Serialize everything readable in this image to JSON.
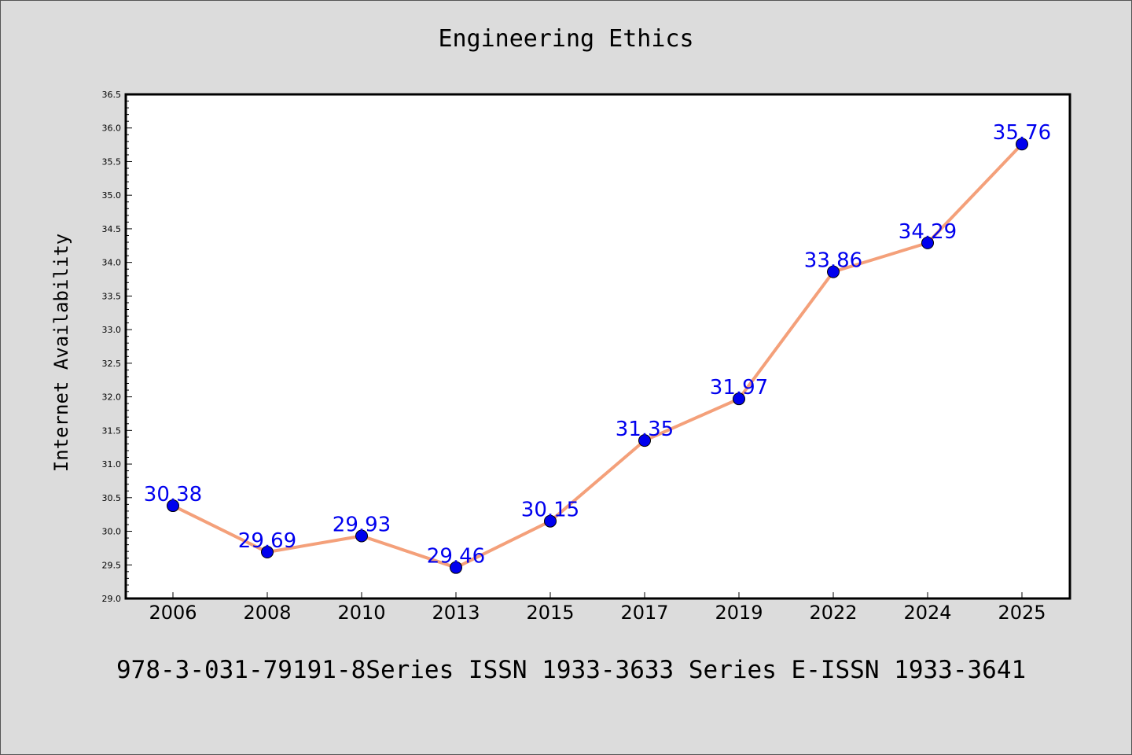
{
  "chart_data": {
    "type": "line",
    "title": "Engineering Ethics",
    "xlabel": "",
    "ylabel": "Internet Availability",
    "categories": [
      "2006",
      "2008",
      "2010",
      "2013",
      "2015",
      "2017",
      "2019",
      "2022",
      "2024",
      "2025"
    ],
    "series": [
      {
        "values": [
          30.38,
          29.69,
          29.93,
          29.46,
          30.15,
          31.35,
          31.97,
          33.86,
          34.29,
          35.76
        ],
        "data_labels": [
          "30.38",
          "29.69",
          "29.93",
          "29.46",
          "30.15",
          "31.35",
          "31.97",
          "33.86",
          "34.29",
          "35.76"
        ]
      }
    ],
    "ylim": [
      29.0,
      36.5
    ],
    "yticks": [
      "29.0",
      "29.5",
      "30.0",
      "30.5",
      "31.0",
      "31.5",
      "32.0",
      "32.5",
      "33.0",
      "33.5",
      "34.0",
      "34.5",
      "35.0",
      "35.5",
      "36.0",
      "36.5"
    ],
    "grid": false,
    "legend": "none",
    "line_color": "#f4a07a",
    "marker_color": "#0000ee",
    "label_color": "#0000ee",
    "background_color": "#dcdcdc",
    "plot_background": "#ffffff"
  },
  "footer": {
    "text": "978-3-031-79191-8Series ISSN 1933-3633 Series E-ISSN 1933-3641"
  }
}
